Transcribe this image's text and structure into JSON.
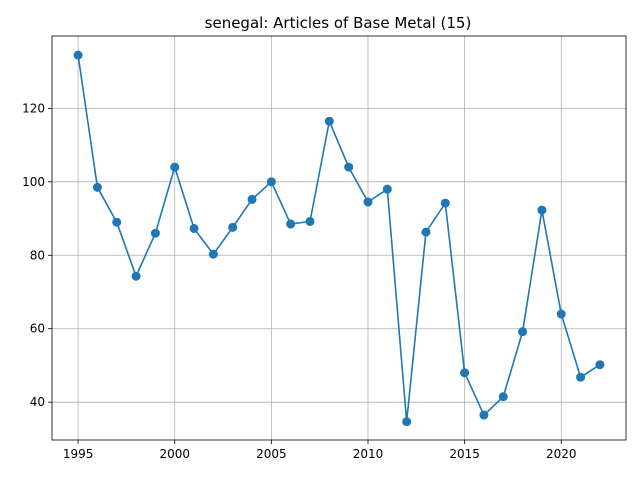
{
  "chart_data": {
    "type": "line",
    "title": "senegal: Articles of Base Metal (15)",
    "xlabel": "",
    "ylabel": "",
    "x": [
      1995,
      1996,
      1997,
      1998,
      1999,
      2000,
      2001,
      2002,
      2003,
      2004,
      2005,
      2006,
      2007,
      2008,
      2009,
      2010,
      2011,
      2012,
      2013,
      2014,
      2015,
      2016,
      2017,
      2018,
      2019,
      2020,
      2021,
      2022
    ],
    "series": [
      {
        "values": [
          134.5,
          98.5,
          89,
          74.3,
          86,
          104,
          87.3,
          80.3,
          87.6,
          95.2,
          100,
          88.5,
          89.2,
          116.5,
          104,
          94.5,
          98,
          34.7,
          86.3,
          94.2,
          48,
          36.5,
          41.5,
          59.2,
          92.3,
          64,
          46.8,
          50.2
        ]
      }
    ],
    "xlim": [
      1993.65,
      1996.35
    ],
    "xrange": [
      1993.65,
      2023.35
    ],
    "ylim": [
      29.7,
      139.7
    ],
    "xticks": [
      1995,
      2000,
      2005,
      2010,
      2015,
      2020
    ],
    "yticks": [
      40,
      60,
      80,
      100,
      120
    ],
    "grid": true,
    "color": "#1f77b4"
  }
}
